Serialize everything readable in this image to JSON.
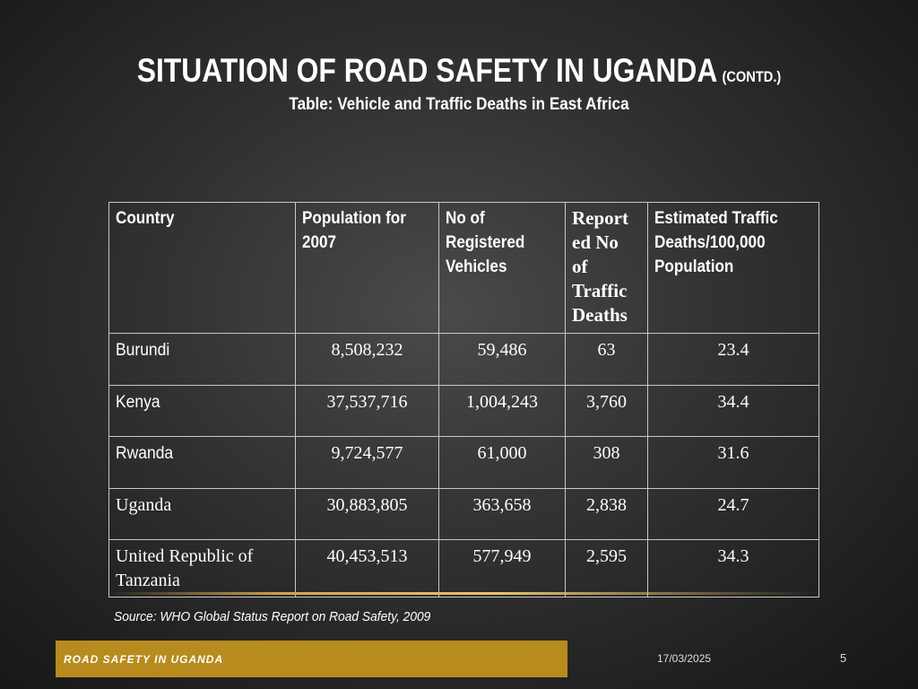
{
  "slide": {
    "title": "SITUATION OF ROAD SAFETY IN UGANDA",
    "title_suffix": "(CONTD.)",
    "subtitle": "Table: Vehicle and Traffic Deaths in East Africa",
    "source": "Source: WHO Global Status Report on Road Safety, 2009",
    "footer_label": "ROAD SAFETY IN UGANDA",
    "date": "17/03/2025",
    "page_number": "5"
  },
  "table": {
    "headers": [
      [
        "Country"
      ],
      [
        "Population for",
        "2007"
      ],
      [
        "No of",
        "Registered",
        "Vehicles"
      ],
      [
        "Report",
        "ed No",
        "of",
        "Traffic",
        "Deaths"
      ],
      [
        "Estimated Traffic",
        "Deaths/100,000",
        "Population"
      ]
    ],
    "rows": [
      {
        "country": [
          "Burundi"
        ],
        "population": "8,508,232",
        "vehicles": "59,486",
        "deaths": "63",
        "rate": "23.4"
      },
      {
        "country": [
          "Kenya"
        ],
        "population": "37,537,716",
        "vehicles": "1,004,243",
        "deaths": "3,760",
        "rate": "34.4"
      },
      {
        "country": [
          "Rwanda"
        ],
        "population": "9,724,577",
        "vehicles": "61,000",
        "deaths": "308",
        "rate": "31.6"
      },
      {
        "country": [
          "Uganda"
        ],
        "population": "30,883,805",
        "vehicles": "363,658",
        "deaths": "2,838",
        "rate": "24.7"
      },
      {
        "country": [
          "United Republic of",
          "Tanzania"
        ],
        "population": "40,453,513",
        "vehicles": "577,949",
        "deaths": "2,595",
        "rate": "34.3"
      }
    ]
  },
  "colors": {
    "accent": "#b88b1e",
    "text": "#ffffff",
    "grid": "#c8c8c8"
  }
}
